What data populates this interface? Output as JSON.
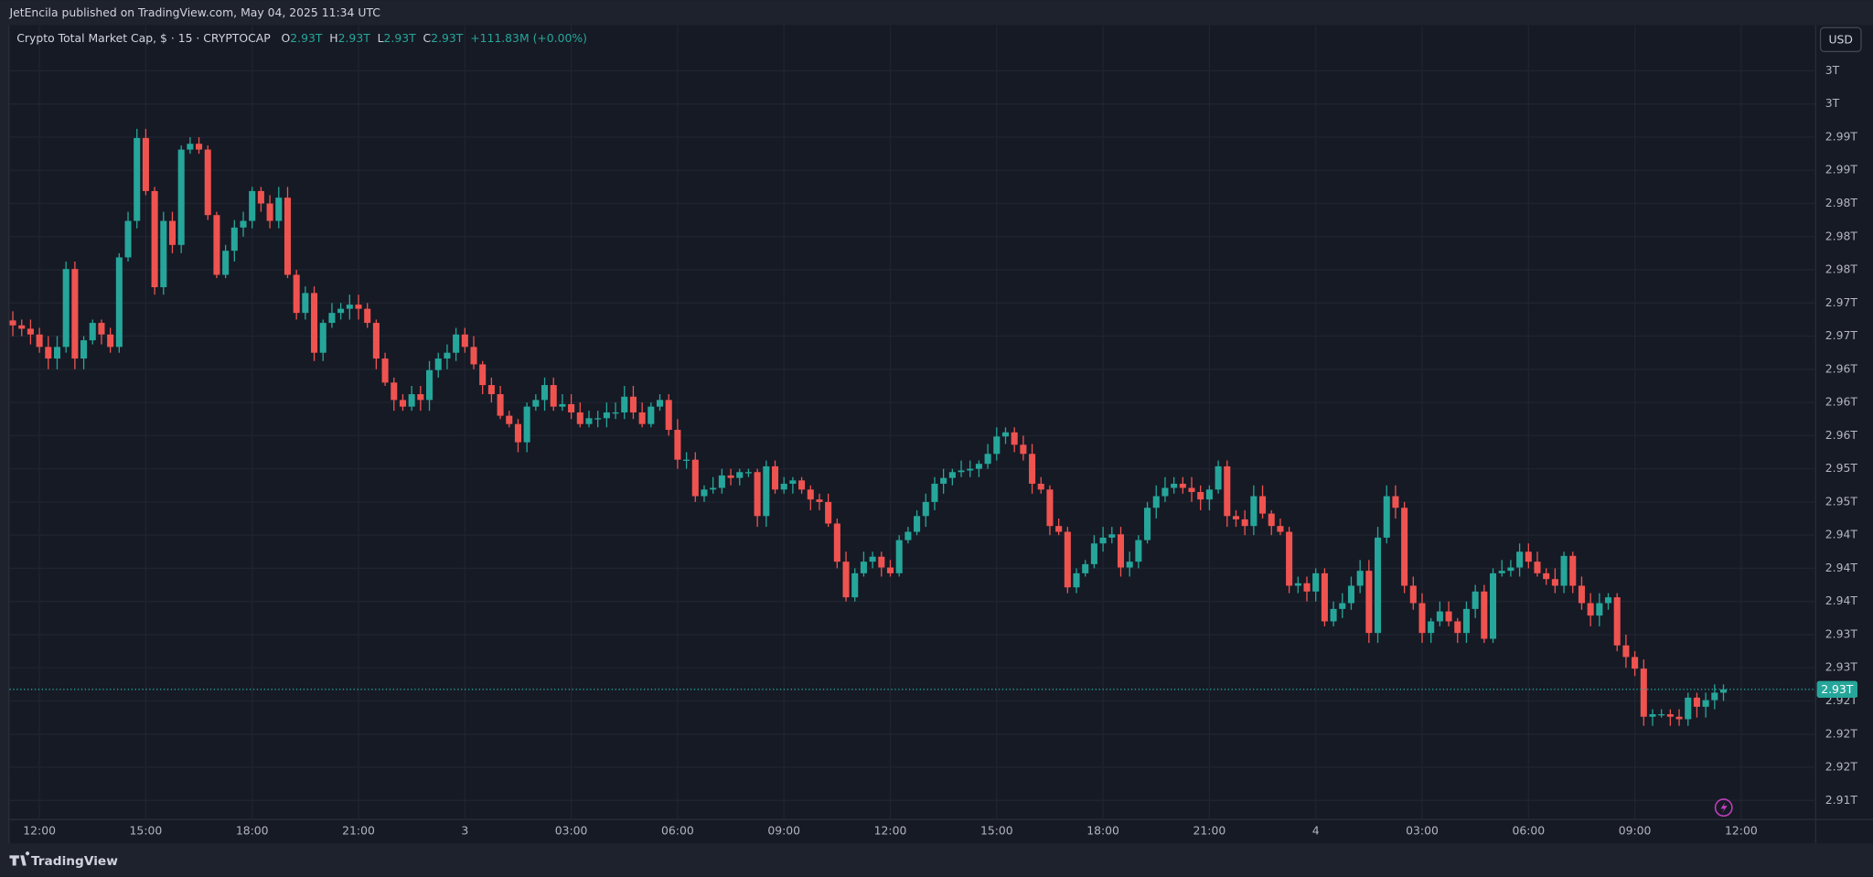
{
  "header": {
    "text": "JetEncila published on TradingView.com, May 04, 2025 11:34 UTC"
  },
  "footer": {
    "brand": "TradingView"
  },
  "chart_data": {
    "type": "candlestick",
    "title": "Crypto Total Market Cap, $ · 15 · CRYPTOCAP",
    "legend_ohlc": [
      {
        "key": "O",
        "value": "2.93T"
      },
      {
        "key": "H",
        "value": "2.93T"
      },
      {
        "key": "L",
        "value": "2.93T"
      },
      {
        "key": "C",
        "value": "2.93T"
      }
    ],
    "change": "+111.83M (+0.00%)",
    "currency": "USD",
    "up_color": "#26a69a",
    "down_color": "#ef5350",
    "grid": true,
    "last_price": {
      "value": 2.9254,
      "label": "2.93T"
    },
    "xlim": [
      -0.37,
      203.4
    ],
    "xticks": [
      {
        "value": 3,
        "label": "12:00"
      },
      {
        "value": 15,
        "label": "15:00"
      },
      {
        "value": 27,
        "label": "18:00"
      },
      {
        "value": 39,
        "label": "21:00"
      },
      {
        "value": 51,
        "label": "3"
      },
      {
        "value": 63,
        "label": "03:00"
      },
      {
        "value": 75,
        "label": "06:00"
      },
      {
        "value": 87,
        "label": "09:00"
      },
      {
        "value": 99,
        "label": "12:00"
      },
      {
        "value": 111,
        "label": "15:00"
      },
      {
        "value": 123,
        "label": "18:00"
      },
      {
        "value": 135,
        "label": "21:00"
      },
      {
        "value": 147,
        "label": "4"
      },
      {
        "value": 159,
        "label": "03:00"
      },
      {
        "value": 171,
        "label": "06:00"
      },
      {
        "value": 183,
        "label": "09:00"
      },
      {
        "value": 195,
        "label": "12:00"
      }
    ],
    "ylim": [
      2.9097,
      3.0055
    ],
    "yticks": [
      {
        "value": 3.0,
        "label": "3T"
      },
      {
        "value": 2.996,
        "label": "3T"
      },
      {
        "value": 2.992,
        "label": "2.99T"
      },
      {
        "value": 2.988,
        "label": "2.99T"
      },
      {
        "value": 2.984,
        "label": "2.98T"
      },
      {
        "value": 2.98,
        "label": "2.98T"
      },
      {
        "value": 2.976,
        "label": "2.98T"
      },
      {
        "value": 2.972,
        "label": "2.97T"
      },
      {
        "value": 2.968,
        "label": "2.97T"
      },
      {
        "value": 2.964,
        "label": "2.96T"
      },
      {
        "value": 2.96,
        "label": "2.96T"
      },
      {
        "value": 2.956,
        "label": "2.96T"
      },
      {
        "value": 2.952,
        "label": "2.95T"
      },
      {
        "value": 2.948,
        "label": "2.95T"
      },
      {
        "value": 2.944,
        "label": "2.94T"
      },
      {
        "value": 2.94,
        "label": "2.94T"
      },
      {
        "value": 2.936,
        "label": "2.94T"
      },
      {
        "value": 2.932,
        "label": "2.93T"
      },
      {
        "value": 2.928,
        "label": "2.93T"
      },
      {
        "value": 2.924,
        "label": "2.92T"
      },
      {
        "value": 2.92,
        "label": "2.92T"
      },
      {
        "value": 2.916,
        "label": "2.92T"
      },
      {
        "value": 2.912,
        "label": "2.91T"
      }
    ],
    "open": [
      2.9699,
      2.9693,
      2.9689,
      2.9682,
      2.9667,
      2.9653,
      2.9667,
      2.9761,
      2.9653,
      2.9675,
      2.9696,
      2.9682,
      2.9667,
      2.9775,
      2.9819,
      2.9919,
      2.9855,
      2.9739,
      2.9819,
      2.979,
      2.9905,
      2.9912,
      2.9905,
      2.9826,
      2.9754,
      2.9783,
      2.9811,
      2.9819,
      2.9855,
      2.984,
      2.9819,
      2.9847,
      2.9754,
      2.9708,
      2.9732,
      2.966,
      2.9696,
      2.9708,
      2.9713,
      2.9718,
      2.9713,
      2.9696,
      2.9653,
      2.9624,
      2.9603,
      2.9595,
      2.961,
      2.9603,
      2.9639,
      2.9653,
      2.966,
      2.9682,
      2.9667,
      2.9646,
      2.9621,
      2.961,
      2.9584,
      2.9574,
      2.9552,
      2.9595,
      2.9603,
      2.9621,
      2.9595,
      2.9598,
      2.9588,
      2.9574,
      2.9581,
      2.9581,
      2.9588,
      2.9588,
      2.9607,
      2.9588,
      2.9574,
      2.9595,
      2.9603,
      2.9567,
      2.9531,
      2.9531,
      2.9487,
      2.9495,
      2.9497,
      2.9512,
      2.9509,
      2.9516,
      2.9516,
      2.9463,
      2.9523,
      2.9495,
      2.9502,
      2.9506,
      2.9495,
      2.9483,
      2.948,
      2.9454,
      2.9408,
      2.9365,
      2.9394,
      2.9408,
      2.9414,
      2.9401,
      2.9394,
      2.9434,
      2.9444,
      2.9463,
      2.948,
      2.9502,
      2.9509,
      2.9516,
      2.9518,
      2.952,
      2.9526,
      2.9538,
      2.9559,
      2.9564,
      2.9549,
      2.9538,
      2.9502,
      2.9495,
      2.9451,
      2.9444,
      2.9377,
      2.9394,
      2.9405,
      2.943,
      2.9437,
      2.9441,
      2.9401,
      2.9408,
      2.9434,
      2.9473,
      2.9487,
      2.9497,
      2.9502,
      2.9497,
      2.9492,
      2.9483,
      2.9495,
      2.9523,
      2.9463,
      2.9459,
      2.9451,
      2.9487,
      2.9466,
      2.9451,
      2.9444,
      2.9379,
      2.9382,
      2.9372,
      2.9394,
      2.9336,
      2.9351,
      2.9358,
      2.9379,
      2.9397,
      2.9322,
      2.9437,
      2.9487,
      2.9473,
      2.9379,
      2.9358,
      2.9322,
      2.9336,
      2.9348,
      2.9336,
      2.9322,
      2.9351,
      2.9372,
      2.9315,
      2.9394,
      2.9397,
      2.9401,
      2.942,
      2.9408,
      2.9394,
      2.9387,
      2.9379,
      2.9415,
      2.9379,
      2.9358,
      2.9343,
      2.9358,
      2.9365,
      2.9307,
      2.9293,
      2.9279,
      2.9221,
      2.9224,
      2.9224,
      2.9221,
      2.9218,
      2.9244,
      2.9233,
      2.9241,
      2.925
    ],
    "high": [
      2.971,
      2.97,
      2.97,
      2.969,
      2.968,
      2.968,
      2.977,
      2.977,
      2.968,
      2.97,
      2.97,
      2.969,
      2.978,
      2.983,
      2.993,
      2.993,
      2.986,
      2.983,
      2.983,
      2.991,
      2.992,
      2.992,
      2.991,
      2.983,
      2.979,
      2.982,
      2.983,
      2.986,
      2.986,
      2.985,
      2.986,
      2.986,
      2.976,
      2.974,
      2.974,
      2.97,
      2.972,
      2.972,
      2.973,
      2.973,
      2.972,
      2.97,
      2.966,
      2.963,
      2.961,
      2.962,
      2.962,
      2.965,
      2.966,
      2.967,
      2.969,
      2.969,
      2.968,
      2.965,
      2.963,
      2.962,
      2.959,
      2.958,
      2.96,
      2.961,
      2.963,
      2.963,
      2.961,
      2.961,
      2.96,
      2.959,
      2.959,
      2.96,
      2.96,
      2.962,
      2.962,
      2.96,
      2.96,
      2.961,
      2.961,
      2.958,
      2.954,
      2.954,
      2.95,
      2.951,
      2.952,
      2.952,
      2.952,
      2.952,
      2.952,
      2.953,
      2.953,
      2.951,
      2.951,
      2.951,
      2.95,
      2.949,
      2.949,
      2.946,
      2.942,
      2.94,
      2.942,
      2.942,
      2.942,
      2.941,
      2.944,
      2.945,
      2.947,
      2.949,
      2.951,
      2.952,
      2.952,
      2.953,
      2.953,
      2.953,
      2.955,
      2.957,
      2.957,
      2.957,
      2.956,
      2.955,
      2.951,
      2.95,
      2.946,
      2.945,
      2.94,
      2.941,
      2.944,
      2.945,
      2.945,
      2.945,
      2.942,
      2.944,
      2.948,
      2.95,
      2.951,
      2.951,
      2.951,
      2.951,
      2.95,
      2.95,
      2.953,
      2.953,
      2.947,
      2.947,
      2.95,
      2.95,
      2.947,
      2.946,
      2.945,
      2.939,
      2.939,
      2.94,
      2.94,
      2.936,
      2.937,
      2.939,
      2.941,
      2.941,
      2.945,
      2.95,
      2.95,
      2.948,
      2.939,
      2.937,
      2.934,
      2.936,
      2.936,
      2.934,
      2.936,
      2.938,
      2.938,
      2.94,
      2.941,
      2.941,
      2.943,
      2.943,
      2.942,
      2.94,
      2.94,
      2.942,
      2.942,
      2.939,
      2.937,
      2.937,
      2.937,
      2.937,
      2.932,
      2.93,
      2.929,
      2.923,
      2.923,
      2.923,
      2.923,
      2.925,
      2.925,
      2.925,
      2.926,
      2.926
    ],
    "low": [
      2.968,
      2.968,
      2.967,
      2.966,
      2.964,
      2.964,
      2.966,
      2.964,
      2.964,
      2.967,
      2.967,
      2.966,
      2.966,
      2.977,
      2.981,
      2.985,
      2.973,
      2.973,
      2.978,
      2.978,
      2.99,
      2.99,
      2.982,
      2.975,
      2.975,
      2.977,
      2.98,
      2.981,
      2.983,
      2.981,
      2.981,
      2.975,
      2.97,
      2.97,
      2.965,
      2.965,
      2.969,
      2.97,
      2.97,
      2.97,
      2.969,
      2.964,
      2.962,
      2.959,
      2.959,
      2.959,
      2.959,
      2.959,
      2.963,
      2.964,
      2.965,
      2.966,
      2.964,
      2.961,
      2.96,
      2.958,
      2.957,
      2.954,
      2.954,
      2.959,
      2.959,
      2.959,
      2.959,
      2.958,
      2.957,
      2.957,
      2.957,
      2.957,
      2.958,
      2.958,
      2.958,
      2.957,
      2.957,
      2.959,
      2.956,
      2.952,
      2.952,
      2.948,
      2.948,
      2.949,
      2.949,
      2.95,
      2.95,
      2.951,
      2.945,
      2.945,
      2.949,
      2.949,
      2.949,
      2.949,
      2.947,
      2.947,
      2.945,
      2.94,
      2.936,
      2.936,
      2.939,
      2.94,
      2.939,
      2.939,
      2.939,
      2.943,
      2.944,
      2.945,
      2.947,
      2.949,
      2.95,
      2.951,
      2.951,
      2.951,
      2.952,
      2.953,
      2.955,
      2.954,
      2.953,
      2.949,
      2.949,
      2.944,
      2.944,
      2.937,
      2.937,
      2.939,
      2.94,
      2.942,
      2.943,
      2.939,
      2.939,
      2.94,
      2.943,
      2.946,
      2.948,
      2.949,
      2.949,
      2.948,
      2.947,
      2.947,
      2.949,
      2.945,
      2.945,
      2.944,
      2.944,
      2.946,
      2.944,
      2.944,
      2.937,
      2.937,
      2.936,
      2.936,
      2.933,
      2.933,
      2.934,
      2.935,
      2.937,
      2.931,
      2.931,
      2.943,
      2.946,
      2.937,
      2.935,
      2.931,
      2.931,
      2.933,
      2.933,
      2.931,
      2.931,
      2.934,
      2.931,
      2.931,
      2.939,
      2.939,
      2.939,
      2.94,
      2.939,
      2.938,
      2.937,
      2.937,
      2.937,
      2.935,
      2.933,
      2.933,
      2.935,
      2.93,
      2.928,
      2.927,
      2.921,
      2.921,
      2.922,
      2.921,
      2.921,
      2.921,
      2.922,
      2.922,
      2.923,
      2.924
    ],
    "close": [
      2.9693,
      2.9689,
      2.9682,
      2.9667,
      2.9653,
      2.9667,
      2.9761,
      2.9653,
      2.9675,
      2.9696,
      2.9682,
      2.9667,
      2.9775,
      2.9819,
      2.9919,
      2.9855,
      2.9739,
      2.9819,
      2.979,
      2.9905,
      2.9912,
      2.9905,
      2.9826,
      2.9754,
      2.9783,
      2.9811,
      2.9819,
      2.9855,
      2.984,
      2.9819,
      2.9847,
      2.9754,
      2.9708,
      2.9732,
      2.966,
      2.9696,
      2.9708,
      2.9713,
      2.9718,
      2.9713,
      2.9696,
      2.9653,
      2.9624,
      2.9603,
      2.9595,
      2.961,
      2.9603,
      2.9639,
      2.9653,
      2.966,
      2.9682,
      2.9667,
      2.9646,
      2.9621,
      2.961,
      2.9584,
      2.9574,
      2.9552,
      2.9595,
      2.9603,
      2.9621,
      2.9595,
      2.9598,
      2.9588,
      2.9574,
      2.9581,
      2.9581,
      2.9588,
      2.9588,
      2.9607,
      2.9588,
      2.9574,
      2.9595,
      2.9603,
      2.9567,
      2.9531,
      2.9531,
      2.9487,
      2.9495,
      2.9497,
      2.9512,
      2.9509,
      2.9516,
      2.9516,
      2.9463,
      2.9523,
      2.9495,
      2.9502,
      2.9506,
      2.9495,
      2.9483,
      2.948,
      2.9454,
      2.9408,
      2.9365,
      2.9394,
      2.9408,
      2.9414,
      2.9401,
      2.9394,
      2.9434,
      2.9444,
      2.9463,
      2.948,
      2.9502,
      2.9509,
      2.9516,
      2.9518,
      2.952,
      2.9526,
      2.9538,
      2.9559,
      2.9564,
      2.9549,
      2.9538,
      2.9502,
      2.9495,
      2.9451,
      2.9444,
      2.9377,
      2.9394,
      2.9405,
      2.943,
      2.9437,
      2.9441,
      2.9401,
      2.9408,
      2.9434,
      2.9473,
      2.9487,
      2.9497,
      2.9502,
      2.9497,
      2.9492,
      2.9483,
      2.9495,
      2.9523,
      2.9463,
      2.9459,
      2.9451,
      2.9487,
      2.9466,
      2.9451,
      2.9444,
      2.9379,
      2.9382,
      2.9372,
      2.9394,
      2.9336,
      2.9351,
      2.9358,
      2.9379,
      2.9397,
      2.9322,
      2.9437,
      2.9487,
      2.9473,
      2.9379,
      2.9358,
      2.9322,
      2.9336,
      2.9348,
      2.9336,
      2.9322,
      2.9351,
      2.9372,
      2.9315,
      2.9394,
      2.9397,
      2.9401,
      2.942,
      2.9408,
      2.9394,
      2.9387,
      2.9379,
      2.9415,
      2.9379,
      2.9358,
      2.9343,
      2.9358,
      2.9365,
      2.9307,
      2.9293,
      2.9279,
      2.9221,
      2.9224,
      2.9224,
      2.9221,
      2.9218,
      2.9244,
      2.9233,
      2.9241,
      2.925,
      2.9254
    ]
  }
}
